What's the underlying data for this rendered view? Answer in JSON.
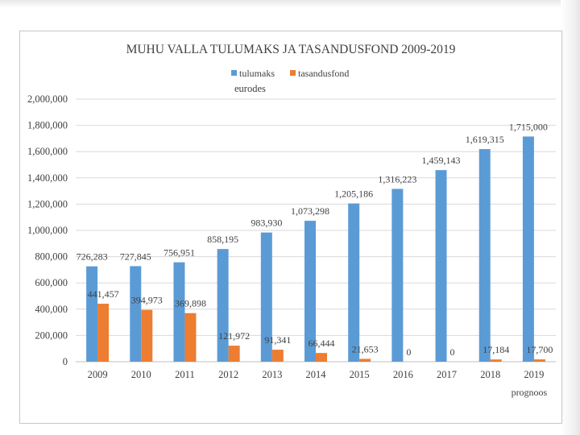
{
  "chart_data": {
    "type": "bar",
    "title": "MUHU VALLA TULUMAKS JA TASANDUSFOND 2009-2019",
    "unit_label": "eurodes",
    "categories": [
      "2009",
      "2010",
      "2011",
      "2012",
      "2013",
      "2014",
      "2015",
      "2016",
      "2017",
      "2018",
      "2019"
    ],
    "category_sublabels": [
      "",
      "",
      "",
      "",
      "",
      "",
      "",
      "",
      "",
      "",
      "prognoos"
    ],
    "series": [
      {
        "name": "tulumaks",
        "color": "#5B9BD5",
        "values": [
          726283,
          727845,
          756951,
          858195,
          983930,
          1073298,
          1205186,
          1316223,
          1459143,
          1619315,
          1715000
        ],
        "labels": [
          "726,283",
          "727,845",
          "756,951",
          "858,195",
          "983,930",
          "1,073,298",
          "1,205,186",
          "1,316,223",
          "1,459,143",
          "1,619,315",
          "1,715,000"
        ]
      },
      {
        "name": "tasandusfond",
        "color": "#ED7D31",
        "values": [
          441457,
          394973,
          369898,
          121972,
          91341,
          66444,
          21653,
          0,
          0,
          17184,
          17700
        ],
        "labels": [
          "441,457",
          "394,973",
          "369,898",
          "121,972",
          "91,341",
          "66,444",
          "21,653",
          "0",
          "0",
          "17,184",
          "17,700"
        ]
      }
    ],
    "yticks": [
      "0",
      "200,000",
      "400,000",
      "600,000",
      "800,000",
      "1,000,000",
      "1,200,000",
      "1,400,000",
      "1,600,000",
      "1,800,000",
      "2,000,000"
    ],
    "ylim": [
      0,
      2000000
    ],
    "ytick_step": 200000,
    "grid": true,
    "legend_position": "top"
  }
}
